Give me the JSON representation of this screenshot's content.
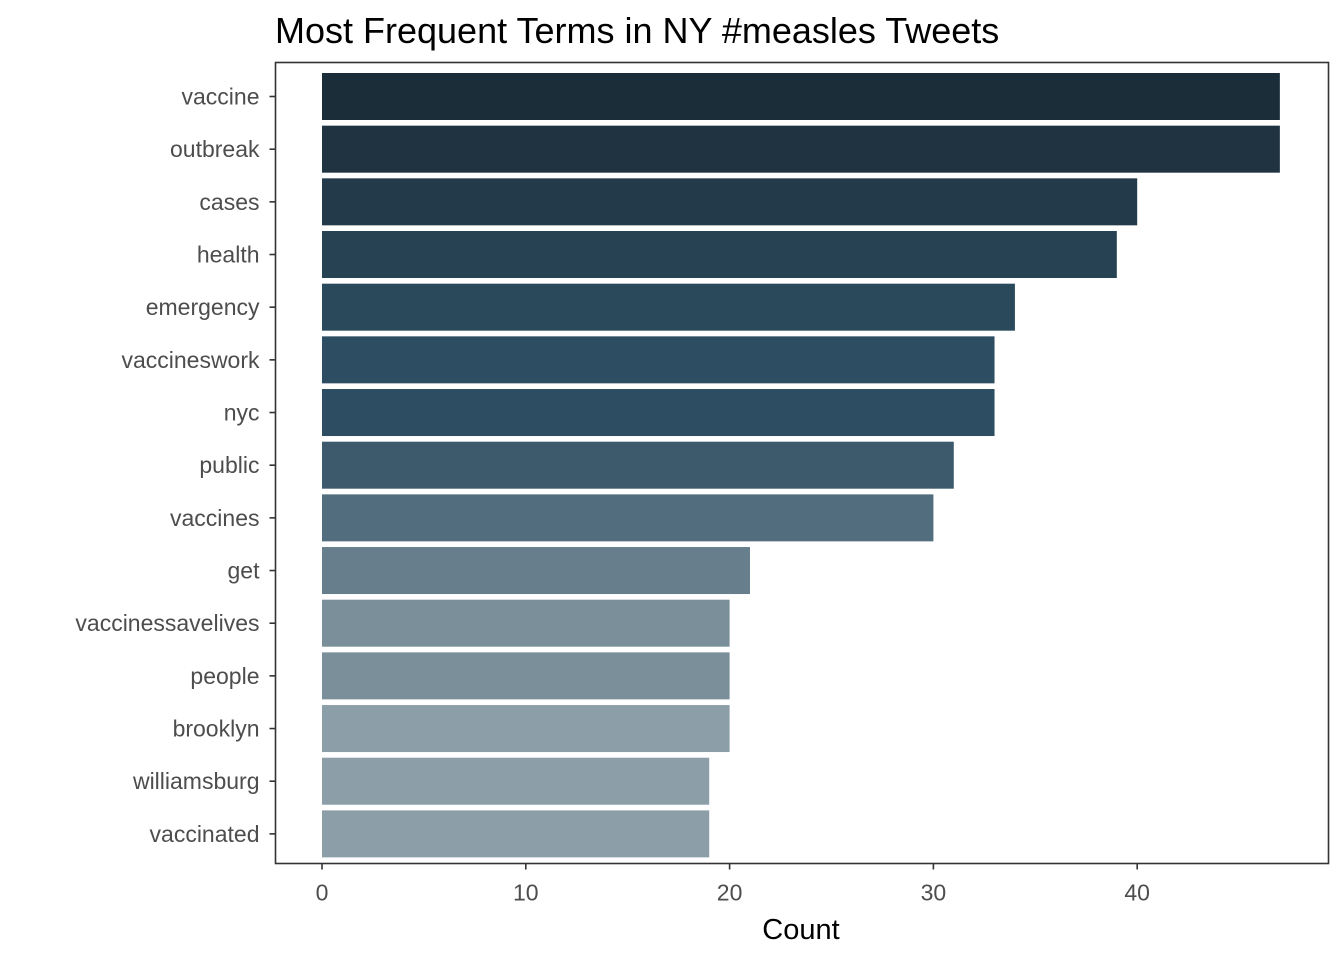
{
  "chart_data": {
    "type": "bar",
    "orientation": "horizontal",
    "title": "Most Frequent Terms in NY #measles Tweets",
    "xlabel": "Count",
    "ylabel": "",
    "xlim": [
      0,
      49
    ],
    "xticks": [
      0,
      10,
      20,
      30,
      40
    ],
    "grid": false,
    "categories": [
      "vaccine",
      "outbreak",
      "cases",
      "health",
      "emergency",
      "vaccineswork",
      "nyc",
      "public",
      "vaccines",
      "get",
      "vaccinessavelives",
      "people",
      "brooklyn",
      "williamsburg",
      "vaccinated"
    ],
    "values": [
      47,
      47,
      40,
      39,
      34,
      33,
      33,
      31,
      30,
      21,
      20,
      20,
      20,
      19,
      19
    ],
    "colors": [
      "#1b2d39",
      "#1f3341",
      "#233a4b",
      "#274252",
      "#2a4a5c",
      "#2d4e62",
      "#2d4e62",
      "#3c5a6c",
      "#526e7e",
      "#677f8d",
      "#7a8f9a",
      "#7a8f9a",
      "#8c9ea8",
      "#8c9ea8",
      "#8c9ea8"
    ]
  }
}
